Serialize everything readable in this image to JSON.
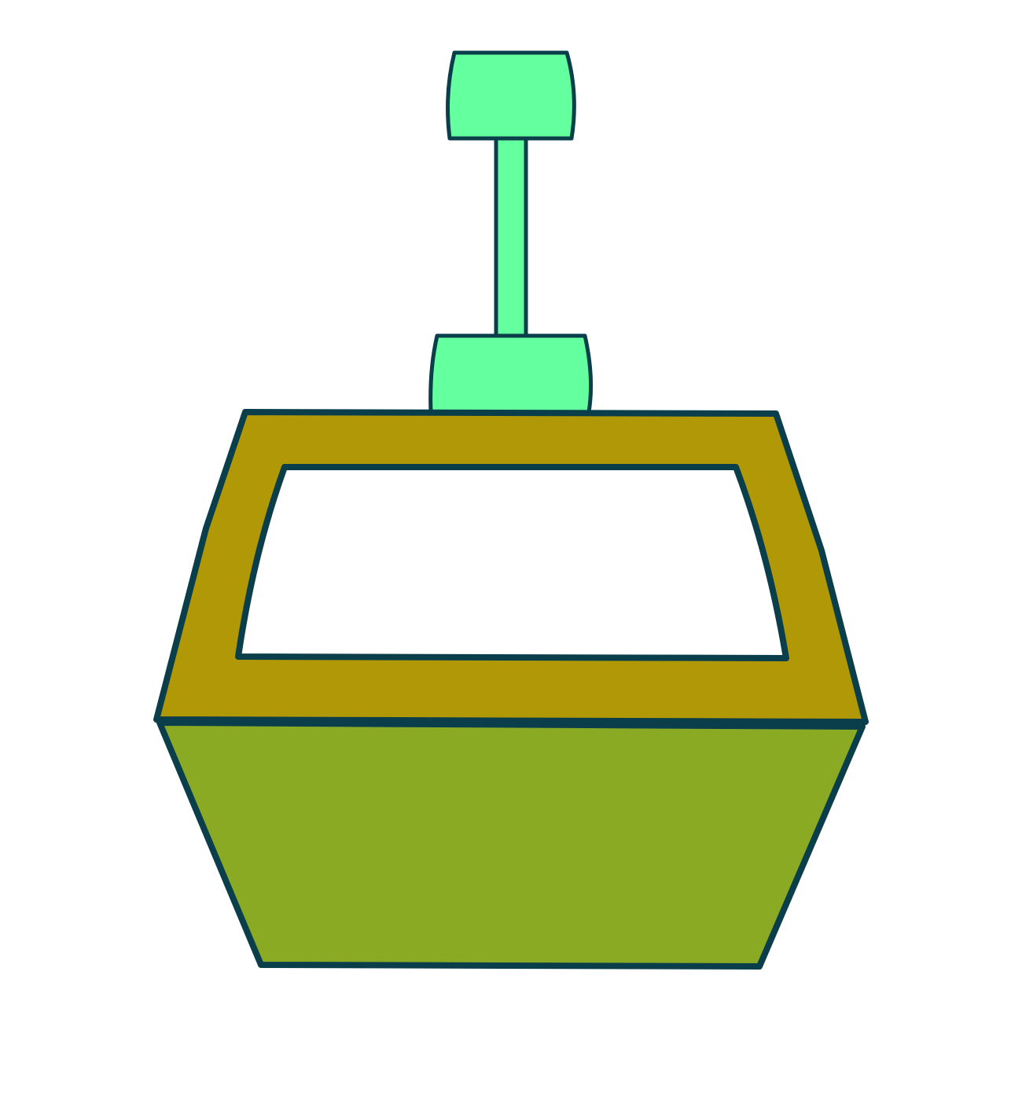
{
  "illustration": {
    "subject": "cable-car-gondola",
    "colors": {
      "background": "#ffffff",
      "outline": "#0b3e4b",
      "grip": "#64ff9e",
      "roof_frame": "#b09806",
      "window": "#ffffff",
      "body": "#8aaa24"
    }
  }
}
